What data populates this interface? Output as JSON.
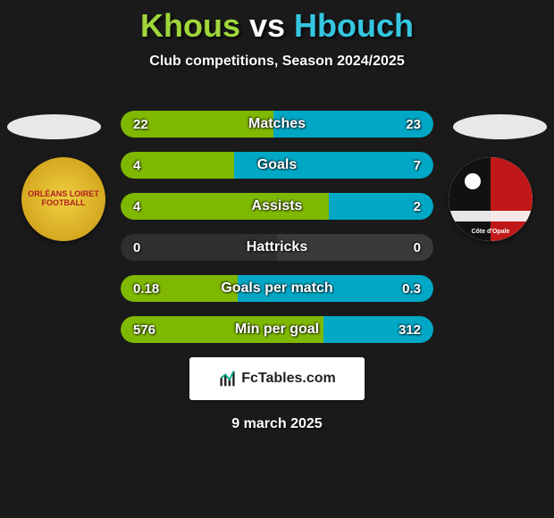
{
  "title_p1": "Khous",
  "title_vs": "vs",
  "title_p2": "Hbouch",
  "subtitle": "Club competitions, Season 2024/2025",
  "badge_left_text": "ORLÉANS LOIRET FOOTBALL",
  "badge_right_text": "Côte d'Opale",
  "colors": {
    "p1_accent": "#7fb800",
    "p2_accent": "#00a8c6",
    "bg_left": "#2f2f2f",
    "bg_right": "#3a3a3a",
    "p1_title": "#9fd63a",
    "p2_title": "#35c6e0"
  },
  "stats": [
    {
      "label": "Matches",
      "left_val": "22",
      "right_val": "23",
      "left_pct": 48.9,
      "right_pct": 51.1,
      "winner": "right"
    },
    {
      "label": "Goals",
      "left_val": "4",
      "right_val": "7",
      "left_pct": 36.4,
      "right_pct": 63.6,
      "winner": "right"
    },
    {
      "label": "Assists",
      "left_val": "4",
      "right_val": "2",
      "left_pct": 66.7,
      "right_pct": 33.3,
      "winner": "left"
    },
    {
      "label": "Hattricks",
      "left_val": "0",
      "right_val": "0",
      "left_pct": 0,
      "right_pct": 0,
      "winner": "none"
    },
    {
      "label": "Goals per match",
      "left_val": "0.18",
      "right_val": "0.3",
      "left_pct": 37.5,
      "right_pct": 62.5,
      "winner": "right"
    },
    {
      "label": "Min per goal",
      "left_val": "576",
      "right_val": "312",
      "left_pct": 64.9,
      "right_pct": 35.1,
      "winner": "right"
    }
  ],
  "footer_brand": "FcTables.com",
  "date_text": "9 march 2025"
}
